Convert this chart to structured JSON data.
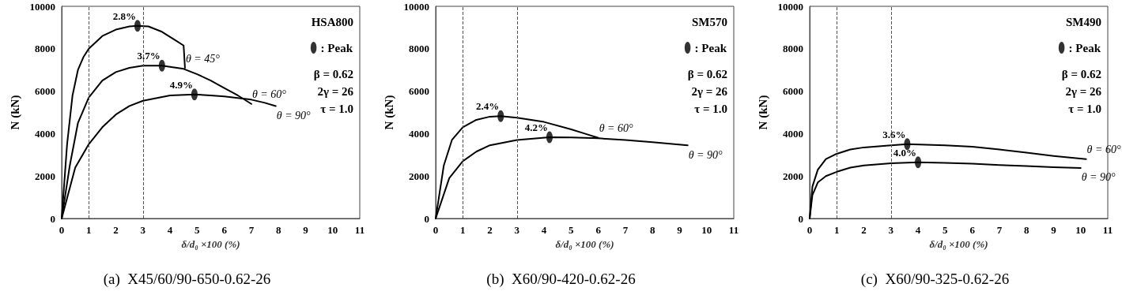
{
  "chart_data": [
    {
      "type": "line",
      "title": "(a)  X45/60/90-650-0.62-26",
      "xlabel": "δ/d₀ ×100 (%)",
      "ylabel": "N (kN)",
      "xlim": [
        0,
        11
      ],
      "xticks": [
        0,
        1,
        2,
        3,
        4,
        5,
        6,
        7,
        8,
        9,
        10,
        11
      ],
      "ylim": [
        0,
        10000
      ],
      "yticks": [
        0,
        2000,
        4000,
        6000,
        8000,
        10000
      ],
      "grid": false,
      "legend": "top right",
      "line_style": "solid",
      "annotations": [
        "HSA800",
        "β = 0.62",
        "2γ = 26",
        "τ = 1.0",
        {
          "text": "2.8%",
          "x": 2.8,
          "y": 9080
        },
        {
          "text": "3.7%",
          "x": 3.7,
          "y": 7200
        },
        {
          "text": "4.9%",
          "x": 4.9,
          "y": 5850
        }
      ],
      "ref_lines": [
        {
          "axis": "x",
          "value": 1,
          "line_style": "dashed",
          "color": "#555555"
        },
        {
          "axis": "x",
          "value": 3,
          "line_style": "dashed",
          "color": "#555555"
        }
      ],
      "series": [
        {
          "name": "θ = 45°",
          "color": "#000000",
          "x": [
            0,
            0.2,
            0.4,
            0.6,
            0.8,
            1,
            1.5,
            2,
            2.5,
            2.8,
            3.2,
            3.7,
            4.2,
            4.5,
            4.55
          ],
          "values": [
            0,
            3500,
            5800,
            7000,
            7600,
            8000,
            8600,
            8900,
            9050,
            9080,
            9050,
            8800,
            8400,
            8150,
            7100
          ]
        },
        {
          "name": "θ = 60°",
          "color": "#000000",
          "x": [
            0,
            0.3,
            0.6,
            1,
            1.5,
            2,
            2.5,
            3,
            3.7,
            4.5,
            5,
            5.5,
            6,
            6.5,
            7
          ],
          "values": [
            0,
            2500,
            4500,
            5700,
            6500,
            6900,
            7100,
            7200,
            7200,
            7050,
            6800,
            6500,
            6150,
            5800,
            5400
          ]
        },
        {
          "name": "θ = 90°",
          "color": "#000000",
          "x": [
            0,
            0.5,
            1,
            1.5,
            2,
            2.5,
            3,
            4,
            4.9,
            5.5,
            6,
            7,
            7.5,
            7.9
          ],
          "values": [
            0,
            2400,
            3500,
            4300,
            4900,
            5300,
            5550,
            5800,
            5850,
            5800,
            5750,
            5600,
            5450,
            5300
          ]
        },
        {
          "name": ": Peak",
          "type": "scatter",
          "marker": "circle",
          "color": "#000000",
          "x": [
            2.8,
            3.7,
            4.9
          ],
          "values": [
            9080,
            7200,
            5850
          ]
        }
      ]
    },
    {
      "type": "line",
      "title": "(b)  X60/90-420-0.62-26",
      "xlabel": "δ/d₀ ×100 (%)",
      "ylabel": "N (kN)",
      "xlim": [
        0,
        11
      ],
      "xticks": [
        0,
        1,
        2,
        3,
        4,
        5,
        6,
        7,
        8,
        9,
        10,
        11
      ],
      "ylim": [
        0,
        10000
      ],
      "yticks": [
        0,
        2000,
        4000,
        6000,
        8000,
        10000
      ],
      "grid": false,
      "legend": "top right",
      "line_style": "solid",
      "annotations": [
        "SM570",
        "β = 0.62",
        "2γ = 26",
        "τ = 1.0",
        {
          "text": "2.4%",
          "x": 2.4,
          "y": 4820
        },
        {
          "text": "4.2%",
          "x": 4.2,
          "y": 3830
        }
      ],
      "ref_lines": [
        {
          "axis": "x",
          "value": 1,
          "line_style": "dashed",
          "color": "#555555"
        },
        {
          "axis": "x",
          "value": 3,
          "line_style": "dashed",
          "color": "#555555"
        }
      ],
      "series": [
        {
          "name": "θ = 60°",
          "color": "#000000",
          "x": [
            0,
            0.3,
            0.6,
            1,
            1.5,
            2,
            2.4,
            3,
            4,
            5,
            5.5,
            6
          ],
          "values": [
            0,
            2500,
            3700,
            4300,
            4650,
            4800,
            4820,
            4750,
            4550,
            4200,
            4000,
            3800
          ]
        },
        {
          "name": "θ = 90°",
          "color": "#000000",
          "x": [
            0,
            0.5,
            1,
            1.5,
            2,
            3,
            4.2,
            5,
            6,
            7,
            8,
            9.3
          ],
          "values": [
            0,
            1900,
            2700,
            3150,
            3450,
            3700,
            3830,
            3820,
            3780,
            3700,
            3600,
            3450
          ]
        },
        {
          "name": ": Peak",
          "type": "scatter",
          "marker": "circle",
          "color": "#000000",
          "x": [
            2.4,
            4.2
          ],
          "values": [
            4820,
            3830
          ]
        }
      ]
    },
    {
      "type": "line",
      "title": "(c)  X60/90-325-0.62-26",
      "xlabel": "δ/d₀ ×100 (%)",
      "ylabel": "N (kN)",
      "xlim": [
        0,
        11
      ],
      "xticks": [
        0,
        1,
        2,
        3,
        4,
        5,
        6,
        7,
        8,
        9,
        10,
        11
      ],
      "ylim": [
        0,
        10000
      ],
      "yticks": [
        0,
        2000,
        4000,
        6000,
        8000,
        10000
      ],
      "grid": false,
      "legend": "top right",
      "line_style": "solid",
      "annotations": [
        "SM490",
        "β = 0.62",
        "2γ = 26",
        "τ = 1.0",
        {
          "text": "3.6%",
          "x": 3.6,
          "y": 3500
        },
        {
          "text": "4.0%",
          "x": 4.0,
          "y": 2650
        }
      ],
      "ref_lines": [
        {
          "axis": "x",
          "value": 1,
          "line_style": "dashed",
          "color": "#555555"
        },
        {
          "axis": "x",
          "value": 3,
          "line_style": "dashed",
          "color": "#555555"
        }
      ],
      "series": [
        {
          "name": "θ = 60°",
          "color": "#000000",
          "x": [
            0,
            0.1,
            0.3,
            0.6,
            1,
            1.5,
            2,
            3,
            3.6,
            5,
            6,
            7,
            8,
            9,
            10.2
          ],
          "values": [
            0,
            1500,
            2300,
            2800,
            3050,
            3250,
            3350,
            3450,
            3500,
            3450,
            3380,
            3250,
            3100,
            2950,
            2800
          ]
        },
        {
          "name": "θ = 90°",
          "color": "#000000",
          "x": [
            0,
            0.1,
            0.3,
            0.6,
            1,
            1.5,
            2,
            3,
            4,
            5,
            6,
            7,
            8,
            9,
            10
          ],
          "values": [
            0,
            1100,
            1700,
            2000,
            2200,
            2400,
            2500,
            2600,
            2650,
            2620,
            2580,
            2520,
            2470,
            2420,
            2380
          ]
        },
        {
          "name": ": Peak",
          "type": "scatter",
          "marker": "circle",
          "color": "#000000",
          "x": [
            3.6,
            4.0
          ],
          "values": [
            3500,
            2650
          ]
        }
      ]
    }
  ]
}
